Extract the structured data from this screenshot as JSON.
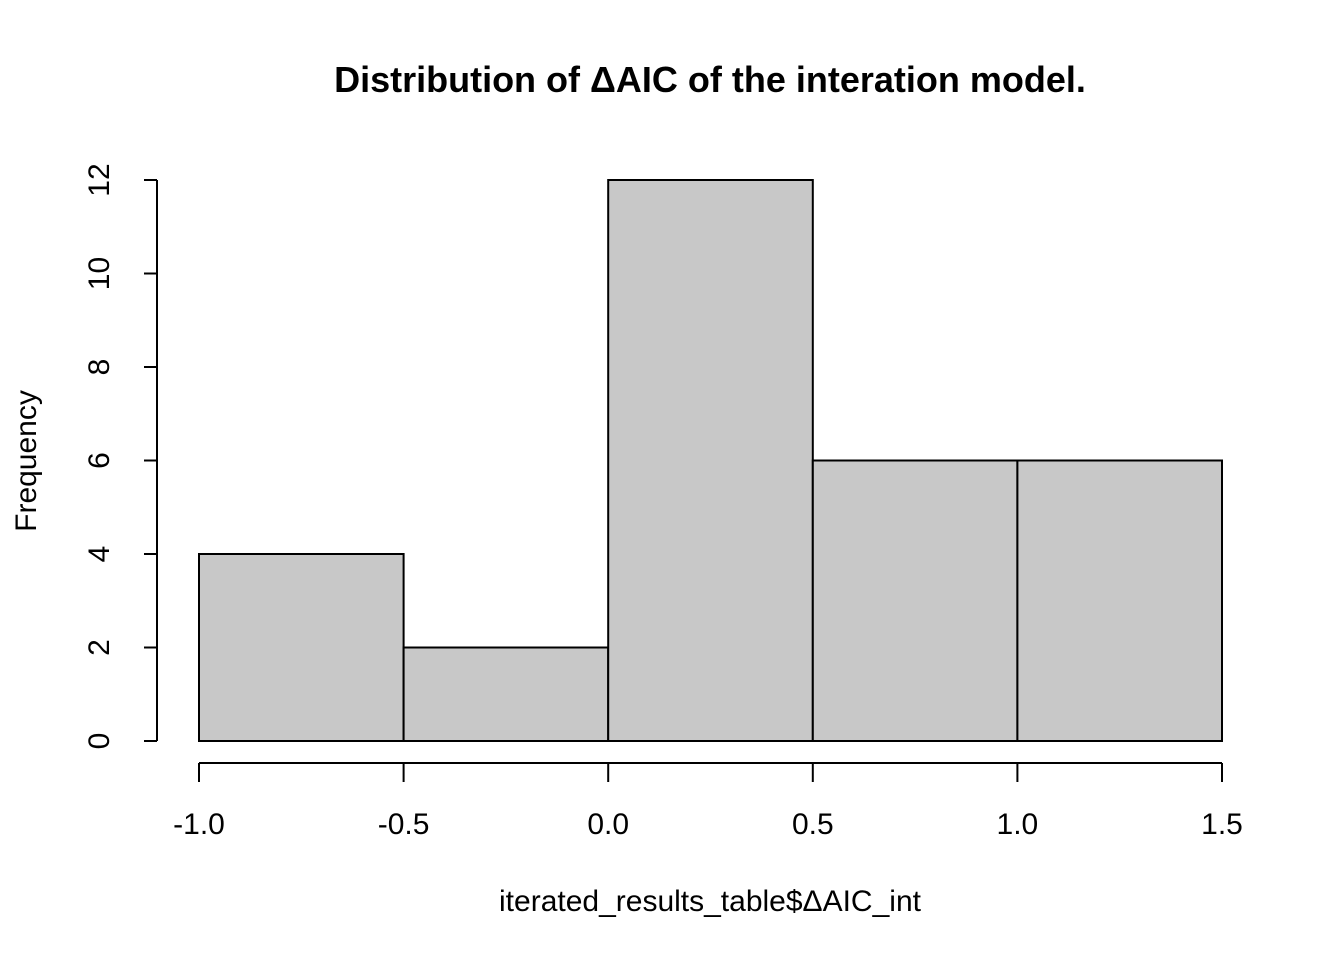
{
  "chart_data": {
    "type": "bar",
    "title": "Distribution of ΔAIC of the interation model.",
    "xlabel": "iterated_results_table$ΔAIC_int",
    "ylabel": "Frequency",
    "bins": [
      {
        "from": -1.0,
        "to": -0.5,
        "count": 4
      },
      {
        "from": -0.5,
        "to": 0.0,
        "count": 2
      },
      {
        "from": 0.0,
        "to": 0.5,
        "count": 12
      },
      {
        "from": 0.5,
        "to": 1.0,
        "count": 6
      },
      {
        "from": 1.0,
        "to": 1.5,
        "count": 6
      }
    ],
    "xlim": [
      -1.0,
      1.5
    ],
    "ylim": [
      0,
      12
    ],
    "x_ticks": [
      -1.0,
      -0.5,
      0.0,
      0.5,
      1.0,
      1.5
    ],
    "x_tick_labels": [
      "-1.0",
      "-0.5",
      "0.0",
      "0.5",
      "1.0",
      "1.5"
    ],
    "y_ticks": [
      0,
      2,
      4,
      6,
      8,
      10,
      12
    ],
    "y_tick_labels": [
      "0",
      "2",
      "4",
      "6",
      "8",
      "10",
      "12"
    ],
    "grid": false,
    "colors": {
      "bar_fill": "#c8c8c8",
      "bar_stroke": "#000000"
    }
  }
}
